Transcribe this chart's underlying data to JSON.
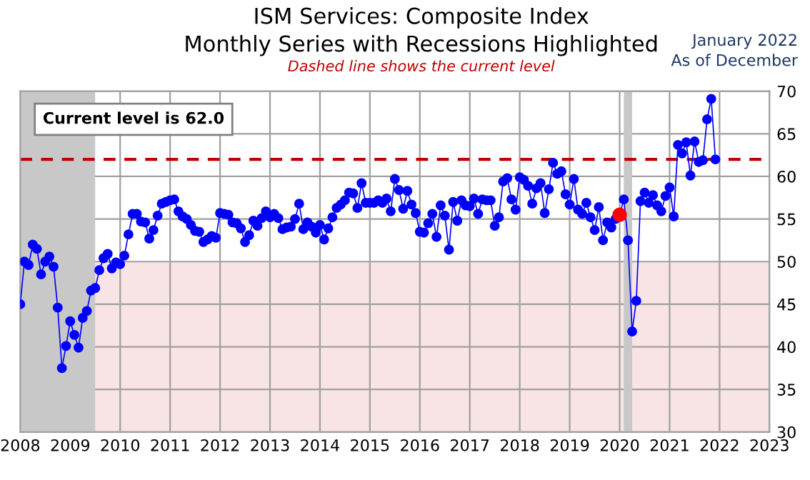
{
  "chart_data": {
    "type": "line",
    "title": "ISM Services: Composite Index\nMonthly Series with Recessions Highlighted",
    "subtitle": "Dashed line shows the current level",
    "annotations": [
      "January 2022\nAs of December",
      "Current level is 62.0"
    ],
    "x": [
      "2008-01",
      "2008-02",
      "2008-03",
      "2008-04",
      "2008-05",
      "2008-06",
      "2008-07",
      "2008-08",
      "2008-09",
      "2008-10",
      "2008-11",
      "2008-12",
      "2009-01",
      "2009-02",
      "2009-03",
      "2009-04",
      "2009-05",
      "2009-06",
      "2009-07",
      "2009-08",
      "2009-09",
      "2009-10",
      "2009-11",
      "2009-12",
      "2010-01",
      "2010-02",
      "2010-03",
      "2010-04",
      "2010-05",
      "2010-06",
      "2010-07",
      "2010-08",
      "2010-09",
      "2010-10",
      "2010-11",
      "2010-12",
      "2011-01",
      "2011-02",
      "2011-03",
      "2011-04",
      "2011-05",
      "2011-06",
      "2011-07",
      "2011-08",
      "2011-09",
      "2011-10",
      "2011-11",
      "2011-12",
      "2012-01",
      "2012-02",
      "2012-03",
      "2012-04",
      "2012-05",
      "2012-06",
      "2012-07",
      "2012-08",
      "2012-09",
      "2012-10",
      "2012-11",
      "2012-12",
      "2013-01",
      "2013-02",
      "2013-03",
      "2013-04",
      "2013-05",
      "2013-06",
      "2013-07",
      "2013-08",
      "2013-09",
      "2013-10",
      "2013-11",
      "2013-12",
      "2014-01",
      "2014-02",
      "2014-03",
      "2014-04",
      "2014-05",
      "2014-06",
      "2014-07",
      "2014-08",
      "2014-09",
      "2014-10",
      "2014-11",
      "2014-12",
      "2015-01",
      "2015-02",
      "2015-03",
      "2015-04",
      "2015-05",
      "2015-06",
      "2015-07",
      "2015-08",
      "2015-09",
      "2015-10",
      "2015-11",
      "2015-12",
      "2016-01",
      "2016-02",
      "2016-03",
      "2016-04",
      "2016-05",
      "2016-06",
      "2016-07",
      "2016-08",
      "2016-09",
      "2016-10",
      "2016-11",
      "2016-12",
      "2017-01",
      "2017-02",
      "2017-03",
      "2017-04",
      "2017-05",
      "2017-06",
      "2017-07",
      "2017-08",
      "2017-09",
      "2017-10",
      "2017-11",
      "2017-12",
      "2018-01",
      "2018-02",
      "2018-03",
      "2018-04",
      "2018-05",
      "2018-06",
      "2018-07",
      "2018-08",
      "2018-09",
      "2018-10",
      "2018-11",
      "2018-12",
      "2019-01",
      "2019-02",
      "2019-03",
      "2019-04",
      "2019-05",
      "2019-06",
      "2019-07",
      "2019-08",
      "2019-09",
      "2019-10",
      "2019-11",
      "2019-12",
      "2020-01",
      "2020-02",
      "2020-03",
      "2020-04",
      "2020-05",
      "2020-06",
      "2020-07",
      "2020-08",
      "2020-09",
      "2020-10",
      "2020-11",
      "2020-12",
      "2021-01",
      "2021-02",
      "2021-03",
      "2021-04",
      "2021-05",
      "2021-06",
      "2021-07",
      "2021-08",
      "2021-09",
      "2021-10",
      "2021-11",
      "2021-12"
    ],
    "series": [
      {
        "color": "#0000ff",
        "values": [
          45.0,
          50.0,
          49.6,
          52.0,
          51.5,
          48.5,
          50.0,
          50.6,
          49.4,
          44.6,
          37.5,
          40.1,
          43.0,
          41.4,
          39.9,
          43.4,
          44.2,
          46.6,
          46.9,
          49.0,
          50.4,
          50.9,
          49.2,
          49.9,
          49.7,
          50.7,
          53.2,
          55.6,
          55.6,
          54.7,
          54.6,
          52.7,
          53.7,
          55.4,
          56.8,
          57.0,
          57.2,
          57.3,
          55.9,
          55.3,
          55.0,
          54.3,
          53.6,
          53.5,
          52.3,
          52.6,
          53.0,
          52.8,
          55.7,
          55.6,
          55.5,
          54.6,
          54.5,
          53.9,
          52.3,
          53.1,
          54.8,
          54.2,
          55.1,
          55.9,
          55.2,
          55.6,
          55.1,
          53.8,
          54.0,
          54.1,
          55.0,
          56.8,
          53.8,
          54.6,
          54.1,
          53.4,
          54.3,
          52.6,
          53.9,
          55.2,
          56.3,
          56.7,
          57.2,
          58.1,
          58.0,
          56.3,
          59.2,
          56.9,
          56.9,
          56.9,
          57.2,
          56.9,
          57.4,
          55.9,
          59.7,
          58.4,
          56.2,
          58.3,
          56.7,
          55.7,
          53.5,
          53.4,
          54.5,
          55.6,
          52.9,
          56.6,
          55.4,
          51.4,
          57.0,
          54.8,
          57.2,
          56.6,
          56.5,
          57.4,
          55.6,
          57.3,
          57.2,
          57.2,
          54.2,
          55.2,
          59.4,
          59.8,
          57.3,
          56.1,
          59.9,
          59.6,
          58.9,
          56.8,
          58.6,
          59.2,
          55.7,
          58.5,
          61.6,
          60.3,
          60.6,
          57.9,
          56.7,
          59.7,
          56.1,
          55.6,
          56.9,
          55.2,
          53.7,
          56.4,
          52.5,
          54.6,
          54.0,
          55.0,
          55.5,
          57.3,
          52.5,
          41.8,
          45.4,
          57.1,
          58.1,
          56.9,
          57.8,
          56.6,
          55.9,
          57.7,
          58.7,
          55.3,
          63.7,
          62.7,
          64.0,
          60.1,
          64.1,
          61.7,
          61.9,
          66.7,
          69.1,
          62.0
        ]
      },
      {
        "type": "scatter",
        "color": "#ff0000",
        "x": [
          "2020-01"
        ],
        "values": [
          55.5
        ]
      }
    ],
    "marker": "circle",
    "xlim": [
      "2008-01",
      "2023-01"
    ],
    "xticks": [
      {
        "value": "2008-01",
        "label": "2008"
      },
      {
        "value": "2009-01",
        "label": "2009"
      },
      {
        "value": "2010-01",
        "label": "2010"
      },
      {
        "value": "2011-01",
        "label": "2011"
      },
      {
        "value": "2012-01",
        "label": "2012"
      },
      {
        "value": "2013-01",
        "label": "2013"
      },
      {
        "value": "2014-01",
        "label": "2014"
      },
      {
        "value": "2015-01",
        "label": "2015"
      },
      {
        "value": "2016-01",
        "label": "2016"
      },
      {
        "value": "2017-01",
        "label": "2017"
      },
      {
        "value": "2018-01",
        "label": "2018"
      },
      {
        "value": "2019-01",
        "label": "2019"
      },
      {
        "value": "2020-01",
        "label": "2020"
      },
      {
        "value": "2021-01",
        "label": "2021"
      },
      {
        "value": "2022-01",
        "label": "2022"
      },
      {
        "value": "2023-01",
        "label": "2023"
      }
    ],
    "ylim": [
      30,
      70
    ],
    "yticks": [
      30,
      35,
      40,
      45,
      50,
      55,
      60,
      65,
      70
    ],
    "grid": true,
    "ref_lines": [
      {
        "axis": "y",
        "value": 62.0,
        "color": "#c00000",
        "line_style": "dashed"
      }
    ],
    "bands": [
      {
        "axis": "x",
        "from": "2008-01",
        "to": "2009-07",
        "color": "#c8c8c8"
      },
      {
        "axis": "x",
        "from": "2020-02",
        "to": "2020-04",
        "color": "#c8c8c8"
      },
      {
        "axis": "y",
        "from": 30,
        "to": 50,
        "color": "#f8e4e4"
      }
    ]
  }
}
